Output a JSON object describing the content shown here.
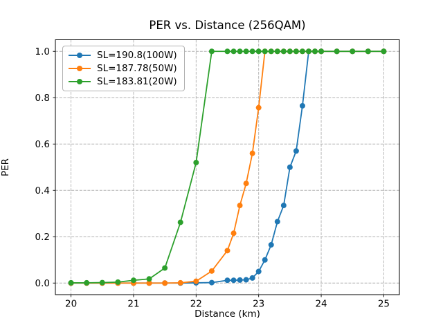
{
  "chart_data": {
    "type": "line",
    "title": "PER vs. Distance (256QAM)",
    "xlabel": "Distance (km)",
    "ylabel": "PER",
    "xlim": [
      19.75,
      25.25
    ],
    "ylim": [
      -0.05,
      1.05
    ],
    "xticks": [
      20,
      21,
      22,
      23,
      24,
      25
    ],
    "xtick_labels": [
      "20",
      "21",
      "22",
      "23",
      "24",
      "25"
    ],
    "yticks": [
      0.0,
      0.2,
      0.4,
      0.6,
      0.8,
      1.0
    ],
    "ytick_labels": [
      "0.0",
      "0.2",
      "0.4",
      "0.6",
      "0.8",
      "1.0"
    ],
    "grid": true,
    "grid_style": "dashed",
    "grid_color": "#b0b0b0",
    "legend_position": "upper left",
    "x": [
      20.0,
      20.25,
      20.5,
      20.75,
      21.0,
      21.25,
      21.5,
      21.75,
      22.0,
      22.25,
      22.5,
      22.6,
      22.7,
      22.8,
      22.9,
      23.0,
      23.1,
      23.2,
      23.3,
      23.4,
      23.5,
      23.6,
      23.7,
      23.8,
      23.9,
      24.0,
      24.25,
      24.5,
      24.75,
      25.0
    ],
    "series": [
      {
        "name": "SL=190.8(100W)",
        "color": "#1f77b4",
        "values": [
          0.0,
          0.0,
          0.0,
          0.0,
          0.0,
          0.0,
          0.0,
          0.0,
          0.001,
          0.002,
          0.012,
          0.012,
          0.013,
          0.014,
          0.022,
          0.05,
          0.1,
          0.165,
          0.265,
          0.335,
          0.5,
          0.57,
          0.765,
          1.0,
          1.0,
          1.0,
          1.0,
          1.0,
          1.0,
          1.0
        ]
      },
      {
        "name": "SL=187.78(50W)",
        "color": "#ff7f0e",
        "values": [
          0.0,
          0.0,
          0.0,
          0.0,
          0.0,
          0.0,
          0.0,
          0.001,
          0.008,
          0.052,
          0.14,
          0.215,
          0.335,
          0.43,
          0.56,
          0.757,
          1.0,
          1.0,
          1.0,
          1.0,
          1.0,
          1.0,
          1.0,
          1.0,
          1.0,
          1.0,
          1.0,
          1.0,
          1.0,
          1.0
        ]
      },
      {
        "name": "SL=183.81(20W)",
        "color": "#2ca02c",
        "values": [
          0.001,
          0.001,
          0.002,
          0.004,
          0.012,
          0.018,
          0.065,
          0.262,
          0.52,
          1.0,
          1.0,
          1.0,
          1.0,
          1.0,
          1.0,
          1.0,
          1.0,
          1.0,
          1.0,
          1.0,
          1.0,
          1.0,
          1.0,
          1.0,
          1.0,
          1.0,
          1.0,
          1.0,
          1.0,
          1.0
        ]
      }
    ]
  }
}
